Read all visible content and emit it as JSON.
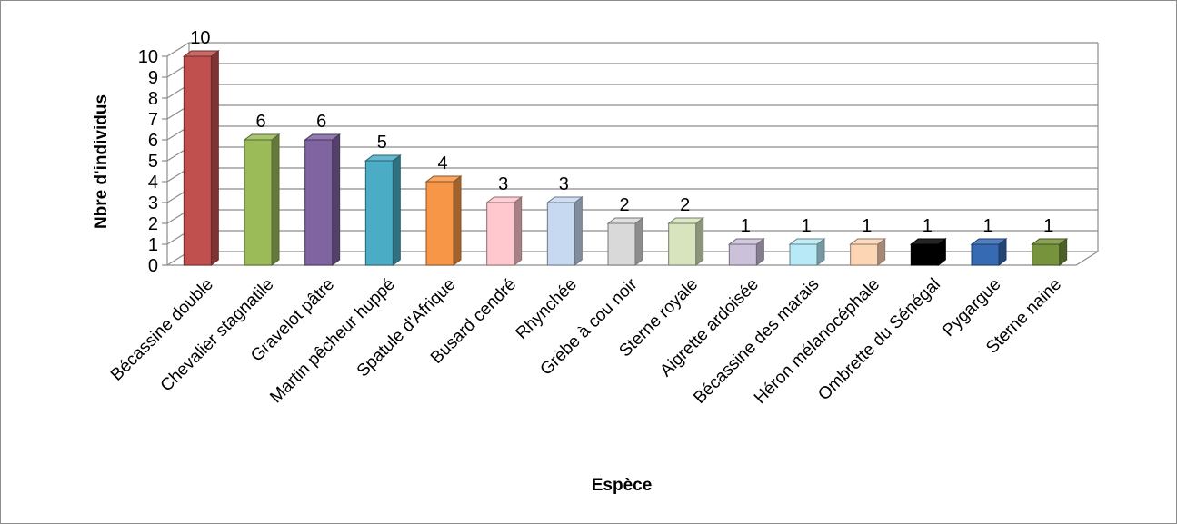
{
  "chart_data": {
    "type": "bar",
    "style": "3d-column",
    "xlabel": "Espèce",
    "ylabel": "Nbre d'individus",
    "ylim": [
      0,
      10
    ],
    "yticks": [
      0,
      1,
      2,
      3,
      4,
      5,
      6,
      7,
      8,
      9,
      10
    ],
    "grid": true,
    "legend": "none",
    "categories": [
      "Bécassine double",
      "Chevalier stagnatile",
      "Gravelot pâtre",
      "Martin pêcheur huppé",
      "Spatule d'Afrique",
      "Busard cendré",
      "Rhynchée",
      "Grèbe à cou noir",
      "Sterne royale",
      "Aigrette ardoisée",
      "Bécassine des marais",
      "Héron mélanocéphale",
      "Ombrette du Sénégal",
      "Pygargue",
      "Sterne naine"
    ],
    "values": [
      10,
      6,
      6,
      5,
      4,
      3,
      3,
      2,
      2,
      1,
      1,
      1,
      1,
      1,
      1
    ],
    "colors": [
      "#c0504d",
      "#9bbb59",
      "#8064a2",
      "#4bacc6",
      "#f79646",
      "#ffc7ce",
      "#c6d9f1",
      "#d9d9d9",
      "#d7e4bd",
      "#ccc1da",
      "#b7eaf6",
      "#fcd5b5",
      "#000000",
      "#366ab3",
      "#77933c"
    ]
  }
}
